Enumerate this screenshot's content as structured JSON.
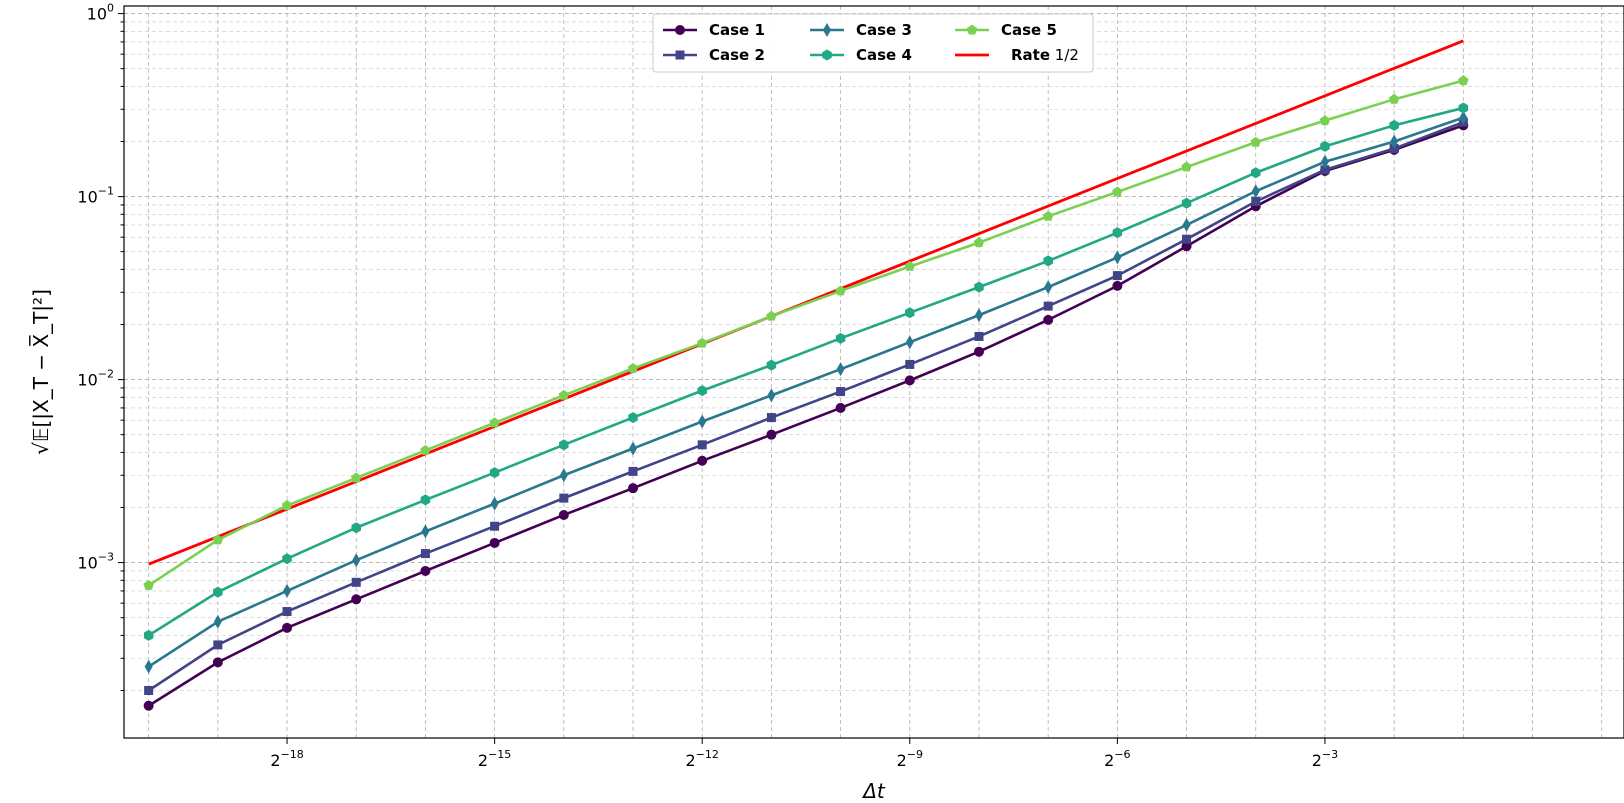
{
  "chart_data": {
    "type": "line",
    "title": "",
    "xlabel": "Δt",
    "ylabel": "√𝔼[|X_T − X̅_T|²]",
    "x_scale": "log2",
    "y_scale": "log10",
    "xlim": [
      7.45e-07,
      2.5
    ],
    "ylim": [
      0.00011,
      1.1
    ],
    "grid": true,
    "legend_position": "top-center",
    "x": [
      9.5367e-07,
      1.9073e-06,
      3.8147e-06,
      7.6294e-06,
      1.5259e-05,
      3.0518e-05,
      6.1035e-05,
      0.00012207,
      0.00024414,
      0.00048828,
      0.00097656,
      0.0019531,
      0.0039063,
      0.0078125,
      0.015625,
      0.03125,
      0.0625,
      0.125,
      0.25,
      0.5
    ],
    "x_ticks": [
      {
        "base": "2",
        "exp": "−18",
        "value": 3.8147e-06
      },
      {
        "base": "2",
        "exp": "−15",
        "value": 3.0518e-05
      },
      {
        "base": "2",
        "exp": "−12",
        "value": 0.00024414
      },
      {
        "base": "2",
        "exp": "−9",
        "value": 0.0019531
      },
      {
        "base": "2",
        "exp": "−6",
        "value": 0.015625
      },
      {
        "base": "2",
        "exp": "−3",
        "value": 0.125
      }
    ],
    "y_ticks": [
      {
        "base": "10",
        "exp": "−3",
        "value": 0.001
      },
      {
        "base": "10",
        "exp": "−2",
        "value": 0.01
      },
      {
        "base": "10",
        "exp": "−1",
        "value": 0.1
      },
      {
        "base": "10",
        "exp": "0",
        "value": 1
      }
    ],
    "series": [
      {
        "name": "Case 1",
        "color": "#440154",
        "marker": "circle",
        "values": [
          0.000165,
          0.000285,
          0.00044,
          0.00063,
          0.0009,
          0.00128,
          0.00182,
          0.00255,
          0.0036,
          0.005,
          0.007,
          0.0099,
          0.0142,
          0.0212,
          0.0325,
          0.0535,
          0.0885,
          0.138,
          0.18,
          0.245
        ]
      },
      {
        "name": "Case 2",
        "color": "#414487",
        "marker": "square",
        "values": [
          0.0002,
          0.000355,
          0.00054,
          0.00078,
          0.00112,
          0.00158,
          0.00225,
          0.00315,
          0.0044,
          0.0062,
          0.0086,
          0.0121,
          0.0172,
          0.0252,
          0.037,
          0.0585,
          0.094,
          0.14,
          0.183,
          0.255
        ]
      },
      {
        "name": "Case 3",
        "color": "#2a788e",
        "marker": "diamond",
        "values": [
          0.00027,
          0.000475,
          0.0007,
          0.00103,
          0.00148,
          0.0021,
          0.003,
          0.0042,
          0.0059,
          0.0082,
          0.0114,
          0.016,
          0.0225,
          0.032,
          0.0465,
          0.07,
          0.107,
          0.155,
          0.2,
          0.27
        ]
      },
      {
        "name": "Case 4",
        "color": "#22a884",
        "marker": "hexagon",
        "values": [
          0.0004,
          0.00069,
          0.00105,
          0.00155,
          0.0022,
          0.0031,
          0.0044,
          0.0062,
          0.0087,
          0.012,
          0.0168,
          0.0232,
          0.032,
          0.0445,
          0.0635,
          0.092,
          0.135,
          0.188,
          0.245,
          0.305
        ]
      },
      {
        "name": "Case 5",
        "color": "#7ad151",
        "marker": "pentagon",
        "values": [
          0.00075,
          0.00133,
          0.00205,
          0.0029,
          0.0041,
          0.0058,
          0.0082,
          0.0115,
          0.0158,
          0.0222,
          0.0305,
          0.0415,
          0.056,
          0.078,
          0.106,
          0.145,
          0.198,
          0.26,
          0.34,
          0.43
        ]
      }
    ],
    "reference_line": {
      "name_bold": "Rate",
      "name_rest": " 1/2",
      "color": "#ff0000",
      "x": [
        9.5367e-07,
        0.5
      ],
      "values": [
        0.00098,
        0.71
      ]
    }
  }
}
